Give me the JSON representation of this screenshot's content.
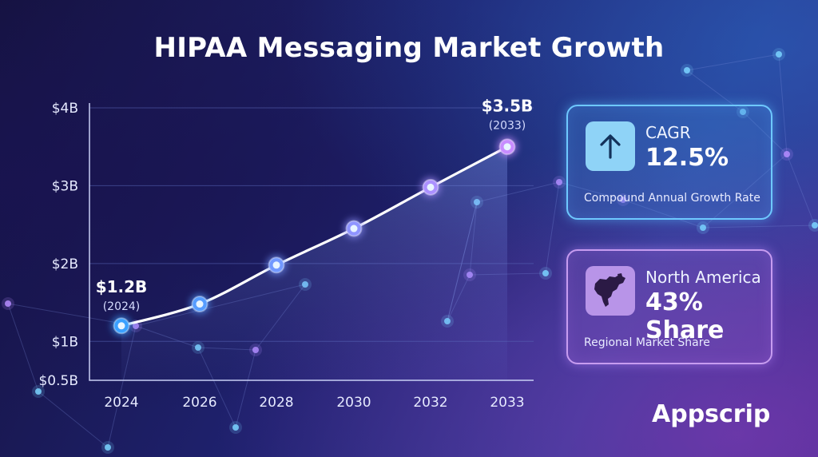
{
  "header": {
    "title": "HIPAA Messaging Market Growth"
  },
  "chart_data": {
    "type": "line",
    "categories": [
      "2024",
      "2026",
      "2028",
      "2030",
      "2032",
      "2033"
    ],
    "values": [
      1.2,
      1.48,
      1.98,
      2.45,
      2.98,
      3.5
    ],
    "y_ticks": [
      {
        "label": "$4B",
        "value": 4.0
      },
      {
        "label": "$3B",
        "value": 3.0
      },
      {
        "label": "$2B",
        "value": 2.0
      },
      {
        "label": "$1B",
        "value": 1.0
      },
      {
        "label": "$0.5B",
        "value": 0.5
      }
    ],
    "ylim": [
      0.5,
      4.0
    ],
    "grid": true,
    "annotations": [
      {
        "index": 0,
        "value_label": "$1.2B",
        "year_label": "(2024)"
      },
      {
        "index": 5,
        "value_label": "$3.5B",
        "year_label": "(2033)"
      }
    ],
    "colors": {
      "line": "#ffffff",
      "point_start": "#3aa0ff",
      "point_end": "#c78cff",
      "grid": "#5a66b8"
    }
  },
  "cards": {
    "cagr": {
      "icon": "arrow-up-icon",
      "heading": "CAGR",
      "value": "12.5%",
      "caption": "Compound Annual Growth Rate",
      "accent": "#6ec8ff"
    },
    "share": {
      "icon": "north-america-map-icon",
      "heading": "North America",
      "value": "43% Share",
      "caption": "Regional Market Share",
      "accent": "#c79cf0"
    }
  },
  "brand": {
    "name": "Appscrip"
  }
}
